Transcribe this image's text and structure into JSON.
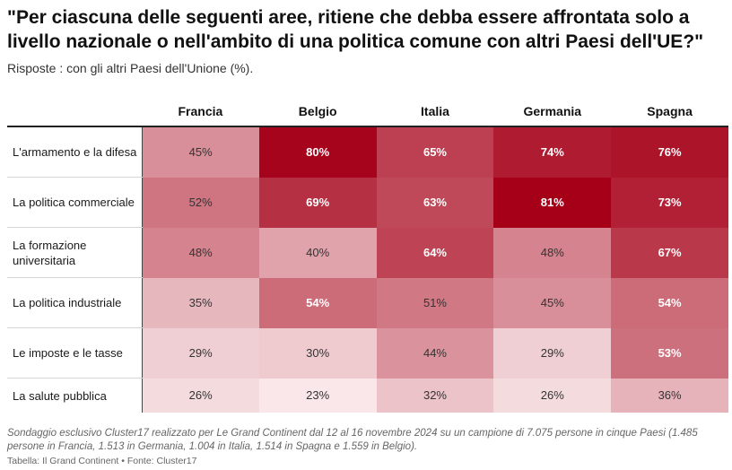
{
  "title": "\"Per ciascuna delle seguenti aree, ritiene che debba essere affrontata solo a livello nazionale o nell'ambito di una politica comune con altri Paesi dell'UE?\"",
  "subtitle": "Risposte : con gli altri Paesi dell'Unione (%).",
  "chart_data": {
    "type": "heatmap",
    "title": "\"Per ciascuna delle seguenti aree, ritiene che debba essere affrontata solo a livello nazionale o nell'ambito di una politica comune con altri Paesi dell'UE?\"",
    "subtitle": "Risposte : con gli altri Paesi dell'Unione (%).",
    "columns": [
      "Francia",
      "Belgio",
      "Italia",
      "Germania",
      "Spagna"
    ],
    "rows": [
      {
        "label": "L'armamento e la difesa",
        "values": [
          45,
          80,
          65,
          74,
          76
        ]
      },
      {
        "label": "La politica commerciale",
        "values": [
          52,
          69,
          63,
          81,
          73
        ]
      },
      {
        "label": "La formazione universitaria",
        "values": [
          48,
          40,
          64,
          48,
          67
        ]
      },
      {
        "label": "La politica industriale",
        "values": [
          35,
          54,
          51,
          45,
          54
        ]
      },
      {
        "label": "Le imposte e le tasse",
        "values": [
          29,
          30,
          44,
          29,
          53
        ]
      },
      {
        "label": "La salute pubblica",
        "values": [
          26,
          23,
          32,
          26,
          36
        ]
      }
    ],
    "value_suffix": "%",
    "color_low": "#fdf3f4",
    "color_high": "#a50018"
  },
  "note": "Sondaggio esclusivo Cluster17 realizzato per Le Grand Continent dal 12 al 16 novembre 2024 su un campione di 7.075 persone in cinque Paesi (1.485 persone in Francia, 1.513 in Germania, 1.004 in Italia, 1.514 in Spagna e 1.559 in Belgio).",
  "credit": "Tabella: Il Grand Continent • Fonte: Cluster17"
}
